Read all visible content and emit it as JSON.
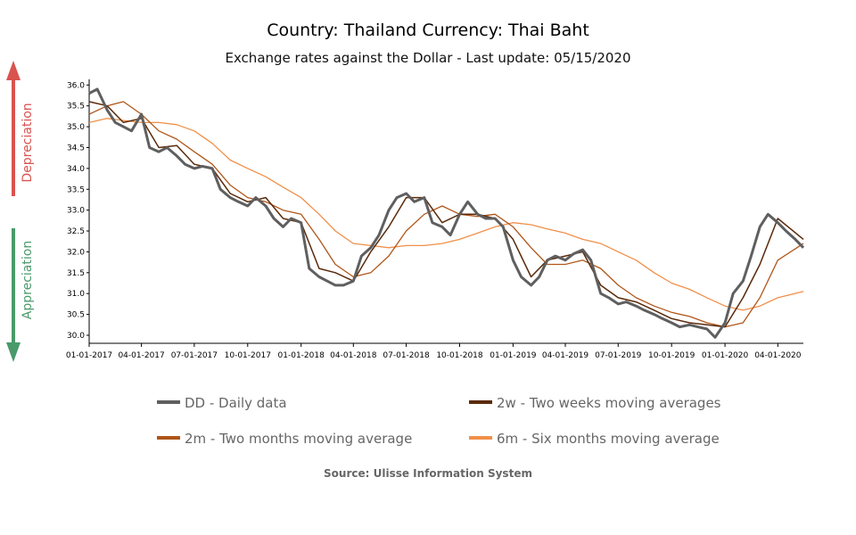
{
  "chart_data": {
    "type": "line",
    "title": "Country: Thailand Currency: Thai Baht",
    "subtitle": "Exchange rates against the Dollar - Last update: 05/15/2020",
    "xlabel": "",
    "ylabel": "",
    "x_ticks": [
      "01-01-2017",
      "04-01-2017",
      "07-01-2017",
      "10-01-2017",
      "01-01-2018",
      "04-01-2018",
      "07-01-2018",
      "10-01-2018",
      "01-01-2019",
      "04-01-2019",
      "07-01-2019",
      "10-01-2019",
      "01-01-2020",
      "04-01-2020"
    ],
    "y_ticks": [
      "36.0",
      "35.5",
      "35.0",
      "34.5",
      "34.0",
      "33.5",
      "33.0",
      "32.5",
      "32.0",
      "31.5",
      "31.0",
      "30.5",
      "30.0"
    ],
    "xlim": [
      "2017-01-01",
      "2020-05-15"
    ],
    "ylim": [
      29.85,
      36.05
    ],
    "grid": false,
    "side_labels": {
      "up": "Depreciation",
      "down": "Appreciation"
    },
    "legend": [
      {
        "key": "dd",
        "label": "DD - Daily data",
        "color": "#5f5f5f"
      },
      {
        "key": "w2",
        "label": "2w - Two weeks moving averages",
        "color": "#5a2a0a"
      },
      {
        "key": "m2",
        "label": "2m - Two months moving average",
        "color": "#b0561a"
      },
      {
        "key": "m6",
        "label": "6m - Six months moving average",
        "color": "#f0904a"
      }
    ],
    "source": "Source: Ulisse Information System",
    "series": [
      {
        "key": "dd",
        "name": "DD - Daily data",
        "color": "#5f5f5f",
        "x": [
          "2017-01-01",
          "2017-01-15",
          "2017-02-01",
          "2017-02-15",
          "2017-03-01",
          "2017-03-15",
          "2017-04-01",
          "2017-04-15",
          "2017-05-01",
          "2017-05-15",
          "2017-06-01",
          "2017-06-15",
          "2017-07-01",
          "2017-07-15",
          "2017-08-01",
          "2017-08-15",
          "2017-09-01",
          "2017-09-15",
          "2017-10-01",
          "2017-10-15",
          "2017-11-01",
          "2017-11-15",
          "2017-12-01",
          "2017-12-15",
          "2018-01-01",
          "2018-01-15",
          "2018-02-01",
          "2018-02-15",
          "2018-03-01",
          "2018-03-15",
          "2018-04-01",
          "2018-04-15",
          "2018-05-01",
          "2018-05-15",
          "2018-06-01",
          "2018-06-15",
          "2018-07-01",
          "2018-07-15",
          "2018-08-01",
          "2018-08-15",
          "2018-09-01",
          "2018-09-15",
          "2018-10-01",
          "2018-10-15",
          "2018-11-01",
          "2018-11-15",
          "2018-12-01",
          "2018-12-15",
          "2019-01-01",
          "2019-01-15",
          "2019-02-01",
          "2019-02-15",
          "2019-03-01",
          "2019-03-15",
          "2019-04-01",
          "2019-04-15",
          "2019-05-01",
          "2019-05-15",
          "2019-06-01",
          "2019-06-15",
          "2019-07-01",
          "2019-07-15",
          "2019-08-01",
          "2019-08-15",
          "2019-09-01",
          "2019-09-15",
          "2019-10-01",
          "2019-10-15",
          "2019-11-01",
          "2019-11-15",
          "2019-12-01",
          "2019-12-15",
          "2020-01-01",
          "2020-01-15",
          "2020-02-01",
          "2020-02-15",
          "2020-03-01",
          "2020-03-15",
          "2020-04-01",
          "2020-04-15",
          "2020-05-01",
          "2020-05-15"
        ],
        "values": [
          35.8,
          35.9,
          35.4,
          35.1,
          35.0,
          34.9,
          35.3,
          34.5,
          34.4,
          34.5,
          34.3,
          34.1,
          34.0,
          34.05,
          34.0,
          33.5,
          33.3,
          33.2,
          33.1,
          33.3,
          33.1,
          32.8,
          32.6,
          32.8,
          32.7,
          31.6,
          31.4,
          31.3,
          31.2,
          31.2,
          31.3,
          31.9,
          32.1,
          32.4,
          33.0,
          33.3,
          33.4,
          33.2,
          33.3,
          32.7,
          32.6,
          32.4,
          32.9,
          33.2,
          32.9,
          32.8,
          32.8,
          32.6,
          31.8,
          31.4,
          31.2,
          31.4,
          31.8,
          31.9,
          31.8,
          31.95,
          32.05,
          31.8,
          31.0,
          30.9,
          30.75,
          30.8,
          30.7,
          30.6,
          30.5,
          30.4,
          30.3,
          30.2,
          30.25,
          30.2,
          30.15,
          29.95,
          30.3,
          31.0,
          31.3,
          31.9,
          32.6,
          32.9,
          32.7,
          32.5,
          32.3,
          32.1
        ]
      },
      {
        "key": "w2",
        "name": "2w - Two weeks moving averages",
        "color": "#5a2a0a",
        "x": [
          "2017-01-01",
          "2017-02-01",
          "2017-03-01",
          "2017-04-01",
          "2017-05-01",
          "2017-06-01",
          "2017-07-01",
          "2017-08-01",
          "2017-09-01",
          "2017-10-01",
          "2017-11-01",
          "2017-12-01",
          "2018-01-01",
          "2018-02-01",
          "2018-03-01",
          "2018-04-01",
          "2018-05-01",
          "2018-06-01",
          "2018-07-01",
          "2018-08-01",
          "2018-09-01",
          "2018-10-01",
          "2018-11-01",
          "2018-12-01",
          "2019-01-01",
          "2019-02-01",
          "2019-03-01",
          "2019-04-01",
          "2019-05-01",
          "2019-06-01",
          "2019-07-01",
          "2019-08-01",
          "2019-09-01",
          "2019-10-01",
          "2019-11-01",
          "2019-12-01",
          "2020-01-01",
          "2020-02-01",
          "2020-03-01",
          "2020-04-01",
          "2020-05-15"
        ],
        "values": [
          35.6,
          35.5,
          35.1,
          35.2,
          34.5,
          34.55,
          34.1,
          34.0,
          33.4,
          33.2,
          33.3,
          32.8,
          32.7,
          31.6,
          31.5,
          31.3,
          32.0,
          32.6,
          33.3,
          33.3,
          32.7,
          32.9,
          32.9,
          32.8,
          32.3,
          31.4,
          31.8,
          31.9,
          32.0,
          31.2,
          30.9,
          30.8,
          30.6,
          30.4,
          30.3,
          30.25,
          30.2,
          30.9,
          31.7,
          32.8,
          32.3
        ]
      },
      {
        "key": "m2",
        "name": "2m - Two months moving average",
        "color": "#b0561a",
        "x": [
          "2017-01-01",
          "2017-02-01",
          "2017-03-01",
          "2017-04-01",
          "2017-05-01",
          "2017-06-01",
          "2017-07-01",
          "2017-08-01",
          "2017-09-01",
          "2017-10-01",
          "2017-11-01",
          "2017-12-01",
          "2018-01-01",
          "2018-02-01",
          "2018-03-01",
          "2018-04-01",
          "2018-05-01",
          "2018-06-01",
          "2018-07-01",
          "2018-08-01",
          "2018-09-01",
          "2018-10-01",
          "2018-11-01",
          "2018-12-01",
          "2019-01-01",
          "2019-02-01",
          "2019-03-01",
          "2019-04-01",
          "2019-05-01",
          "2019-06-01",
          "2019-07-01",
          "2019-08-01",
          "2019-09-01",
          "2019-10-01",
          "2019-11-01",
          "2019-12-01",
          "2020-01-01",
          "2020-02-01",
          "2020-03-01",
          "2020-04-01",
          "2020-05-15"
        ],
        "values": [
          35.3,
          35.5,
          35.6,
          35.3,
          34.9,
          34.7,
          34.4,
          34.1,
          33.6,
          33.3,
          33.2,
          33.0,
          32.9,
          32.3,
          31.7,
          31.4,
          31.5,
          31.9,
          32.5,
          32.9,
          33.1,
          32.9,
          32.85,
          32.9,
          32.6,
          32.1,
          31.7,
          31.7,
          31.8,
          31.6,
          31.2,
          30.9,
          30.7,
          30.55,
          30.45,
          30.3,
          30.2,
          30.3,
          30.9,
          31.8,
          32.2
        ]
      },
      {
        "key": "m6",
        "name": "6m - Six months moving average",
        "color": "#f0904a",
        "x": [
          "2017-01-01",
          "2017-02-01",
          "2017-03-01",
          "2017-04-01",
          "2017-05-01",
          "2017-06-01",
          "2017-07-01",
          "2017-08-01",
          "2017-09-01",
          "2017-10-01",
          "2017-11-01",
          "2017-12-01",
          "2018-01-01",
          "2018-02-01",
          "2018-03-01",
          "2018-04-01",
          "2018-05-01",
          "2018-06-01",
          "2018-07-01",
          "2018-08-01",
          "2018-09-01",
          "2018-10-01",
          "2018-11-01",
          "2018-12-01",
          "2019-01-01",
          "2019-02-01",
          "2019-03-01",
          "2019-04-01",
          "2019-05-01",
          "2019-06-01",
          "2019-07-01",
          "2019-08-01",
          "2019-09-01",
          "2019-10-01",
          "2019-11-01",
          "2019-12-01",
          "2020-01-01",
          "2020-02-01",
          "2020-03-01",
          "2020-04-01",
          "2020-05-15"
        ],
        "values": [
          35.1,
          35.2,
          35.15,
          35.1,
          35.1,
          35.05,
          34.9,
          34.6,
          34.2,
          34.0,
          33.8,
          33.55,
          33.3,
          32.9,
          32.5,
          32.2,
          32.15,
          32.1,
          32.15,
          32.15,
          32.2,
          32.3,
          32.45,
          32.6,
          32.7,
          32.65,
          32.55,
          32.45,
          32.3,
          32.2,
          32.0,
          31.8,
          31.5,
          31.25,
          31.1,
          30.9,
          30.7,
          30.6,
          30.7,
          30.9,
          31.05
        ]
      }
    ]
  }
}
